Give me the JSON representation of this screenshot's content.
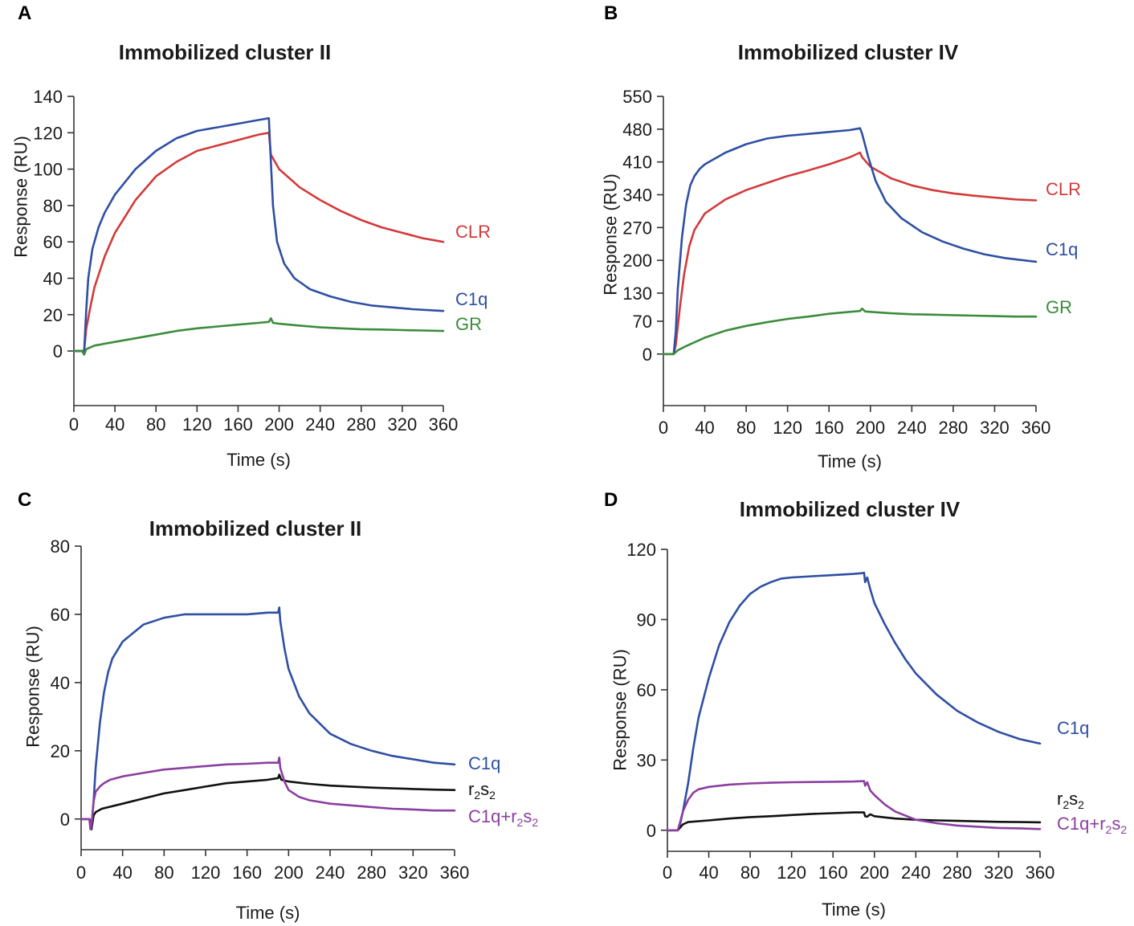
{
  "chart_data": [
    {
      "panel": "A",
      "type": "line",
      "title": "Immobilized cluster II",
      "xlabel": "Time (s)",
      "ylabel": "Response (RU)",
      "xlim": [
        0,
        360
      ],
      "ylim": [
        -30,
        140
      ],
      "xticks": [
        0,
        40,
        80,
        120,
        160,
        200,
        240,
        280,
        320,
        360
      ],
      "yticks": [
        0,
        20,
        40,
        60,
        80,
        100,
        120,
        140
      ],
      "series": [
        {
          "name": "CLR",
          "label": "CLR",
          "color": "#d33a3a",
          "x": [
            0,
            8,
            10,
            12,
            16,
            20,
            30,
            40,
            60,
            80,
            100,
            120,
            140,
            160,
            180,
            190,
            192,
            200,
            220,
            240,
            260,
            280,
            300,
            320,
            340,
            360
          ],
          "y": [
            0,
            0,
            0,
            12,
            24,
            35,
            52,
            65,
            83,
            96,
            104,
            110,
            113,
            116,
            119,
            120,
            108,
            100,
            90,
            83,
            77,
            72,
            68,
            65,
            62,
            60
          ]
        },
        {
          "name": "C1q",
          "label": "C1q",
          "color": "#2e4fa3",
          "x": [
            0,
            8,
            10,
            12,
            14,
            18,
            24,
            30,
            40,
            60,
            80,
            100,
            120,
            140,
            160,
            180,
            190,
            191,
            194,
            198,
            205,
            215,
            230,
            250,
            270,
            290,
            310,
            330,
            360
          ],
          "y": [
            0,
            0,
            0,
            22,
            40,
            56,
            68,
            76,
            86,
            100,
            110,
            117,
            121,
            123,
            125,
            127,
            128,
            115,
            80,
            60,
            48,
            40,
            34,
            30,
            27,
            25,
            24,
            23,
            22
          ]
        },
        {
          "name": "GR",
          "label": "GR",
          "color": "#3c8c3c",
          "x": [
            0,
            8,
            10,
            12,
            20,
            40,
            60,
            80,
            100,
            120,
            140,
            160,
            180,
            190,
            192,
            194,
            200,
            220,
            240,
            260,
            280,
            300,
            320,
            340,
            360
          ],
          "y": [
            0,
            0,
            -2,
            1,
            3,
            5,
            7,
            9,
            11,
            12.5,
            13.5,
            14.5,
            15.5,
            16,
            18,
            15.5,
            15,
            14,
            13,
            12.5,
            12,
            11.8,
            11.5,
            11.3,
            11
          ]
        }
      ]
    },
    {
      "panel": "B",
      "type": "line",
      "title": "Immobilized cluster IV",
      "xlabel": "Time (s)",
      "ylabel": "Response (RU)",
      "xlim": [
        0,
        360
      ],
      "ylim": [
        -110,
        550
      ],
      "xticks": [
        0,
        40,
        80,
        120,
        160,
        200,
        240,
        280,
        320,
        360
      ],
      "yticks": [
        0,
        70,
        130,
        200,
        270,
        340,
        410,
        480,
        550
      ],
      "series": [
        {
          "name": "CLR",
          "label": "CLR",
          "color": "#d33a3a",
          "x": [
            0,
            10,
            12,
            16,
            20,
            25,
            30,
            40,
            60,
            80,
            100,
            120,
            140,
            160,
            180,
            190,
            192,
            200,
            220,
            240,
            260,
            280,
            300,
            320,
            340,
            360
          ],
          "y": [
            0,
            0,
            20,
            100,
            170,
            230,
            265,
            300,
            330,
            350,
            365,
            380,
            392,
            405,
            420,
            430,
            420,
            400,
            375,
            360,
            350,
            343,
            338,
            334,
            330,
            328
          ]
        },
        {
          "name": "C1q",
          "label": "C1q",
          "color": "#2e4fa3",
          "x": [
            0,
            10,
            12,
            14,
            18,
            22,
            26,
            30,
            35,
            40,
            60,
            80,
            100,
            120,
            140,
            160,
            180,
            190,
            192,
            198,
            205,
            215,
            230,
            250,
            270,
            290,
            310,
            330,
            360
          ],
          "y": [
            0,
            0,
            50,
            140,
            250,
            320,
            360,
            380,
            395,
            405,
            430,
            448,
            460,
            466,
            470,
            474,
            478,
            482,
            470,
            420,
            370,
            325,
            290,
            260,
            240,
            225,
            213,
            205,
            197
          ]
        },
        {
          "name": "GR",
          "label": "GR",
          "color": "#3c8c3c",
          "x": [
            0,
            10,
            14,
            20,
            40,
            60,
            80,
            100,
            120,
            140,
            160,
            180,
            190,
            192,
            195,
            200,
            220,
            240,
            260,
            280,
            300,
            320,
            340,
            360
          ],
          "y": [
            0,
            0,
            8,
            15,
            35,
            50,
            60,
            68,
            75,
            80,
            86,
            90,
            92,
            97,
            91,
            90,
            87,
            85,
            84,
            83,
            82,
            81,
            80,
            80
          ]
        }
      ]
    },
    {
      "panel": "C",
      "type": "line",
      "title": "Immobilized cluster II",
      "xlabel": "Time (s)",
      "ylabel": "Response (RU)",
      "xlim": [
        0,
        360
      ],
      "ylim": [
        -9,
        80
      ],
      "xticks": [
        0,
        40,
        80,
        120,
        160,
        200,
        240,
        280,
        320,
        360
      ],
      "yticks": [
        0,
        20,
        40,
        60,
        80
      ],
      "series": [
        {
          "name": "C1q",
          "label": "C1q",
          "color": "#2e4fa3",
          "x": [
            0,
            8,
            10,
            12,
            14,
            18,
            22,
            26,
            30,
            40,
            60,
            80,
            100,
            120,
            140,
            160,
            180,
            190,
            191,
            192,
            196,
            200,
            210,
            220,
            240,
            260,
            280,
            300,
            320,
            340,
            360
          ],
          "y": [
            0,
            0,
            -2,
            5,
            15,
            28,
            37,
            43,
            47,
            52,
            57,
            59,
            60,
            60,
            60,
            60,
            60.5,
            60.5,
            62,
            58,
            50,
            44,
            36,
            31,
            25,
            22,
            20,
            18.5,
            17.5,
            16.5,
            16
          ]
        },
        {
          "name": "r2s2",
          "label": "r",
          "label_sub1": "2",
          "label_mid": "s",
          "label_sub2": "2",
          "color": "#111111",
          "x": [
            0,
            8,
            10,
            12,
            14,
            20,
            40,
            60,
            80,
            100,
            120,
            140,
            160,
            180,
            190,
            191,
            193,
            200,
            220,
            240,
            260,
            280,
            300,
            320,
            340,
            360
          ],
          "y": [
            0,
            0,
            -3,
            1,
            2,
            3,
            4.5,
            6,
            7.5,
            8.5,
            9.5,
            10.5,
            11,
            11.5,
            12,
            13,
            11.5,
            11,
            10.3,
            9.8,
            9.5,
            9.2,
            9,
            8.8,
            8.6,
            8.5
          ]
        },
        {
          "name": "C1q+r2s2",
          "label": "C1q+r",
          "label_sub1": "2",
          "label_mid": "s",
          "label_sub2": "2",
          "color": "#8b3fa0",
          "x": [
            0,
            8,
            9,
            10,
            12,
            14,
            18,
            22,
            28,
            40,
            60,
            80,
            100,
            120,
            140,
            160,
            180,
            190,
            191,
            192,
            196,
            200,
            210,
            220,
            240,
            260,
            280,
            300,
            320,
            340,
            360
          ],
          "y": [
            0,
            0,
            -3,
            -2,
            5,
            8,
            9.5,
            10.5,
            11.5,
            12.5,
            13.5,
            14.5,
            15,
            15.5,
            16,
            16.2,
            16.5,
            16.5,
            18,
            15,
            11,
            8.5,
            6.5,
            5.5,
            4.5,
            4,
            3.5,
            3,
            2.8,
            2.5,
            2.5
          ]
        }
      ]
    },
    {
      "panel": "D",
      "type": "line",
      "title": "Immobilized cluster IV",
      "xlabel": "Time (s)",
      "ylabel": "Response (RU)",
      "xlim": [
        0,
        360
      ],
      "ylim": [
        -9,
        120
      ],
      "xticks": [
        0,
        40,
        80,
        120,
        160,
        200,
        240,
        280,
        320,
        360
      ],
      "yticks": [
        0,
        30,
        60,
        90,
        120
      ],
      "series": [
        {
          "name": "C1q",
          "label": "C1q",
          "color": "#2e4fa3",
          "x": [
            0,
            10,
            12,
            15,
            20,
            25,
            30,
            40,
            50,
            60,
            70,
            80,
            90,
            100,
            110,
            120,
            140,
            160,
            180,
            188,
            190,
            191,
            193,
            196,
            200,
            210,
            220,
            230,
            240,
            260,
            280,
            300,
            320,
            340,
            360
          ],
          "y": [
            0,
            0,
            2,
            8,
            20,
            35,
            48,
            65,
            79,
            89,
            96,
            101,
            104,
            106,
            107.5,
            108,
            108.5,
            109,
            109.5,
            109.8,
            110,
            106,
            108,
            103,
            97,
            88,
            80,
            73,
            67,
            58,
            51,
            46,
            42,
            39,
            37
          ]
        },
        {
          "name": "r2s2",
          "label": "r",
          "label_sub1": "2",
          "label_mid": "s",
          "label_sub2": "2",
          "color": "#111111",
          "x": [
            0,
            10,
            12,
            15,
            20,
            40,
            60,
            80,
            100,
            120,
            140,
            160,
            180,
            190,
            191,
            193,
            196,
            200,
            220,
            240,
            260,
            280,
            300,
            320,
            340,
            360
          ],
          "y": [
            0,
            0,
            1,
            2.5,
            3.5,
            4.2,
            5,
            5.6,
            6,
            6.5,
            7,
            7.3,
            7.6,
            7.6,
            6,
            5.8,
            6.8,
            6,
            5,
            4.5,
            4.2,
            4,
            3.8,
            3.6,
            3.5,
            3.4
          ]
        },
        {
          "name": "C1q+r2s2",
          "label": "C1q+r",
          "label_sub1": "2",
          "label_mid": "s",
          "label_sub2": "2",
          "color": "#8b3fa0",
          "x": [
            0,
            10,
            12,
            15,
            20,
            25,
            30,
            40,
            60,
            80,
            100,
            120,
            140,
            160,
            180,
            190,
            191,
            193,
            196,
            200,
            210,
            220,
            240,
            260,
            280,
            300,
            320,
            340,
            360
          ],
          "y": [
            0,
            0,
            3,
            8,
            13,
            16,
            17.5,
            18.5,
            19.5,
            20,
            20.3,
            20.5,
            20.6,
            20.7,
            20.8,
            21,
            19,
            20.5,
            17,
            15,
            11,
            8,
            4.5,
            3,
            2,
            1.5,
            1,
            0.8,
            0.5
          ]
        }
      ]
    }
  ]
}
